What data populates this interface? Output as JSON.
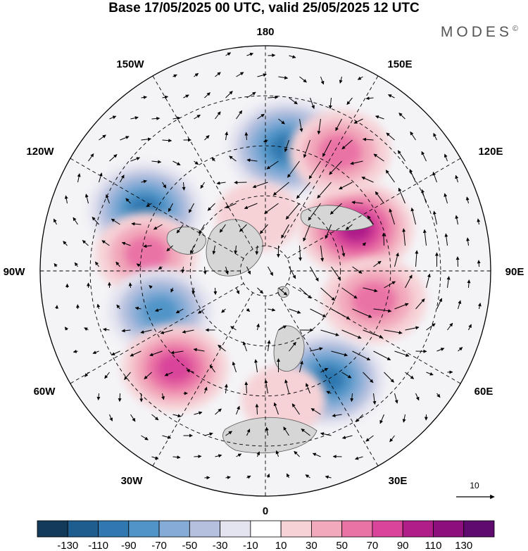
{
  "title": "Base 17/05/2025 00 UTC, valid 25/05/2025 12 UTC",
  "brand": "MODES",
  "brand_mark": "©",
  "longitude_labels": [
    "180",
    "150E",
    "120E",
    "90E",
    "60E",
    "30E",
    "0",
    "30W",
    "60W",
    "90W",
    "120W",
    "150W"
  ],
  "reference_vector": {
    "label": "10"
  },
  "colorbar": {
    "ticks": [
      "-130",
      "-110",
      "-90",
      "-70",
      "-50",
      "-30",
      "-10",
      "10",
      "30",
      "50",
      "70",
      "90",
      "110",
      "130"
    ],
    "colors": [
      "#143a5a",
      "#1e5d8e",
      "#2f78b0",
      "#5195c8",
      "#84acd6",
      "#b5c0de",
      "#e4e4f0",
      "#ffffff",
      "#f6d2d6",
      "#f2a9bb",
      "#ea73a6",
      "#d9459a",
      "#b01e8a",
      "#8c0f7d",
      "#5e0a6e"
    ]
  },
  "anomaly_centers": [
    {
      "lon": 170,
      "lat": 40,
      "value": -110
    },
    {
      "lon": 115,
      "lat": 50,
      "value": 100
    },
    {
      "lon": 148,
      "lat": 34,
      "value": 70
    },
    {
      "lon": -117,
      "lat": 36,
      "value": -100
    },
    {
      "lon": -98,
      "lat": 42,
      "value": 70
    },
    {
      "lon": -69,
      "lat": 45,
      "value": -80
    },
    {
      "lon": -43,
      "lat": 37,
      "value": 80
    },
    {
      "lon": -172,
      "lat": 68,
      "value": 30
    },
    {
      "lon": 30,
      "lat": 40,
      "value": -100
    },
    {
      "lon": 8,
      "lat": 38,
      "value": 30
    },
    {
      "lon": 75,
      "lat": 45,
      "value": 75
    }
  ]
}
